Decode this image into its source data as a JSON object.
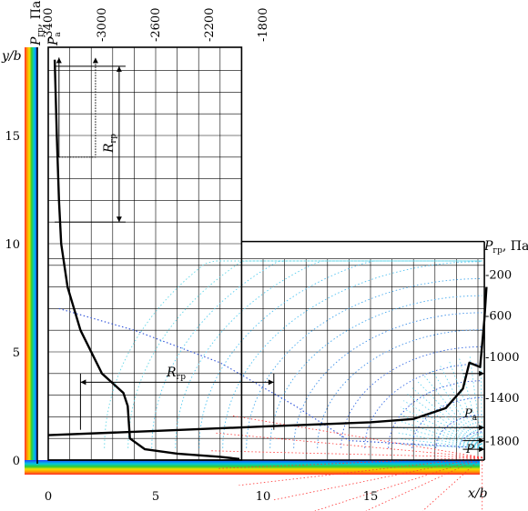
{
  "chart_data": {
    "type": "line",
    "xlabel": "x/b",
    "ylabel": "y/b",
    "xlim": [
      -1,
      20
    ],
    "ylim": [
      -1,
      19
    ],
    "x_ticks": [
      "0",
      "5",
      "10",
      "15"
    ],
    "y_ticks": [
      "0",
      "5",
      "10",
      "15"
    ],
    "x_tick_values": [
      0,
      5,
      10,
      15
    ],
    "y_tick_values": [
      0,
      5,
      10,
      15
    ],
    "top_axis": {
      "label_base": "P",
      "label_sub": "гр",
      "label_unit": ", Па",
      "ticks": [
        "-3400",
        "-3000",
        "-2600",
        "-2200",
        "-1800"
      ],
      "tick_x": [
        0,
        2.5,
        5,
        7.5,
        10
      ]
    },
    "right_axis": {
      "label_base": "P",
      "label_sub": "гр",
      "label_unit": ", Па",
      "ticks": [
        "-200",
        "-600",
        "-1000",
        "-1400",
        "-1800"
      ],
      "tick_y": [
        8.6,
        6.7,
        4.8,
        2.9,
        0.9
      ]
    },
    "annotations": {
      "r_vertical": {
        "base": "R",
        "sub": "гр"
      },
      "r_horizontal": {
        "base": "R",
        "sub": "гр"
      },
      "pa_top": {
        "base": "P",
        "sub": "a"
      },
      "pa_right": {
        "base": "P",
        "sub": "a"
      },
      "p_right": "P"
    },
    "series": [
      {
        "key": "vertical_pressure_profile",
        "points": [
          [
            0.3,
            18.5
          ],
          [
            0.4,
            15
          ],
          [
            0.5,
            12
          ],
          [
            0.6,
            10
          ],
          [
            0.9,
            8
          ],
          [
            1.5,
            6
          ],
          [
            2.5,
            4
          ],
          [
            3.5,
            3.1
          ],
          [
            3.7,
            2.5
          ],
          [
            3.8,
            1.0
          ],
          [
            4.5,
            0.5
          ],
          [
            6,
            0.3
          ],
          [
            8,
            0.15
          ],
          [
            8.9,
            0.05
          ]
        ]
      },
      {
        "key": "horizontal_pressure_profile",
        "points": [
          [
            0,
            1.15
          ],
          [
            5,
            1.35
          ],
          [
            10,
            1.55
          ],
          [
            15,
            1.75
          ],
          [
            17,
            1.9
          ],
          [
            18.5,
            2.4
          ],
          [
            19.3,
            3.3
          ],
          [
            19.6,
            4.5
          ],
          [
            20.1,
            4.3
          ],
          [
            20.3,
            6.5
          ],
          [
            20.4,
            8.0
          ]
        ]
      },
      {
        "key": "pressure_contours",
        "points": [
          [
            0.5,
            7.0
          ],
          [
            4,
            6.0
          ],
          [
            8,
            4.5
          ],
          [
            11.5,
            2.5
          ],
          [
            14,
            0.9
          ],
          [
            19.5,
            0.6
          ]
        ]
      }
    ]
  }
}
